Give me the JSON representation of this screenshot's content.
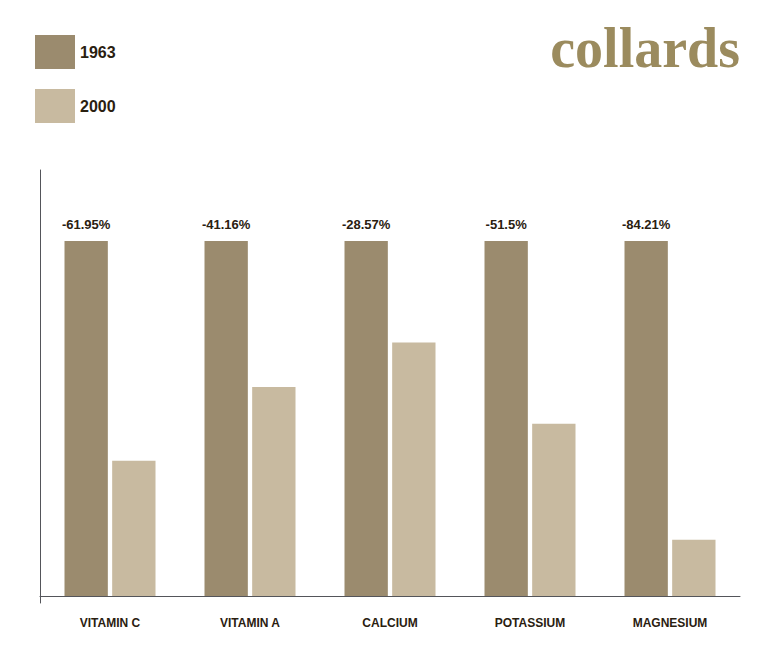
{
  "chart_data": {
    "type": "bar",
    "title": "collards",
    "categories": [
      "VITAMIN C",
      "VITAMIN A",
      "CALCIUM",
      "POTASSIUM",
      "MAGNESIUM"
    ],
    "series": [
      {
        "name": "1963",
        "color": "#9B8B6E",
        "values": [
          100,
          100,
          100,
          100,
          100
        ]
      },
      {
        "name": "2000",
        "color": "#C8BAA0",
        "values": [
          38.05,
          58.84,
          71.43,
          48.5,
          15.79
        ]
      }
    ],
    "annotations": [
      {
        "category": "VITAMIN C",
        "text": "-61.95%"
      },
      {
        "category": "VITAMIN A",
        "text": "-41.16%"
      },
      {
        "category": "CALCIUM",
        "text": "-28.57%"
      },
      {
        "category": "POTASSIUM",
        "text": "-51.5%"
      },
      {
        "category": "MAGNESIUM",
        "text": "-84.21%"
      }
    ],
    "ylim": [
      -2,
      120
    ],
    "grid": false,
    "legend": "upper left",
    "tick_labels": "x"
  }
}
